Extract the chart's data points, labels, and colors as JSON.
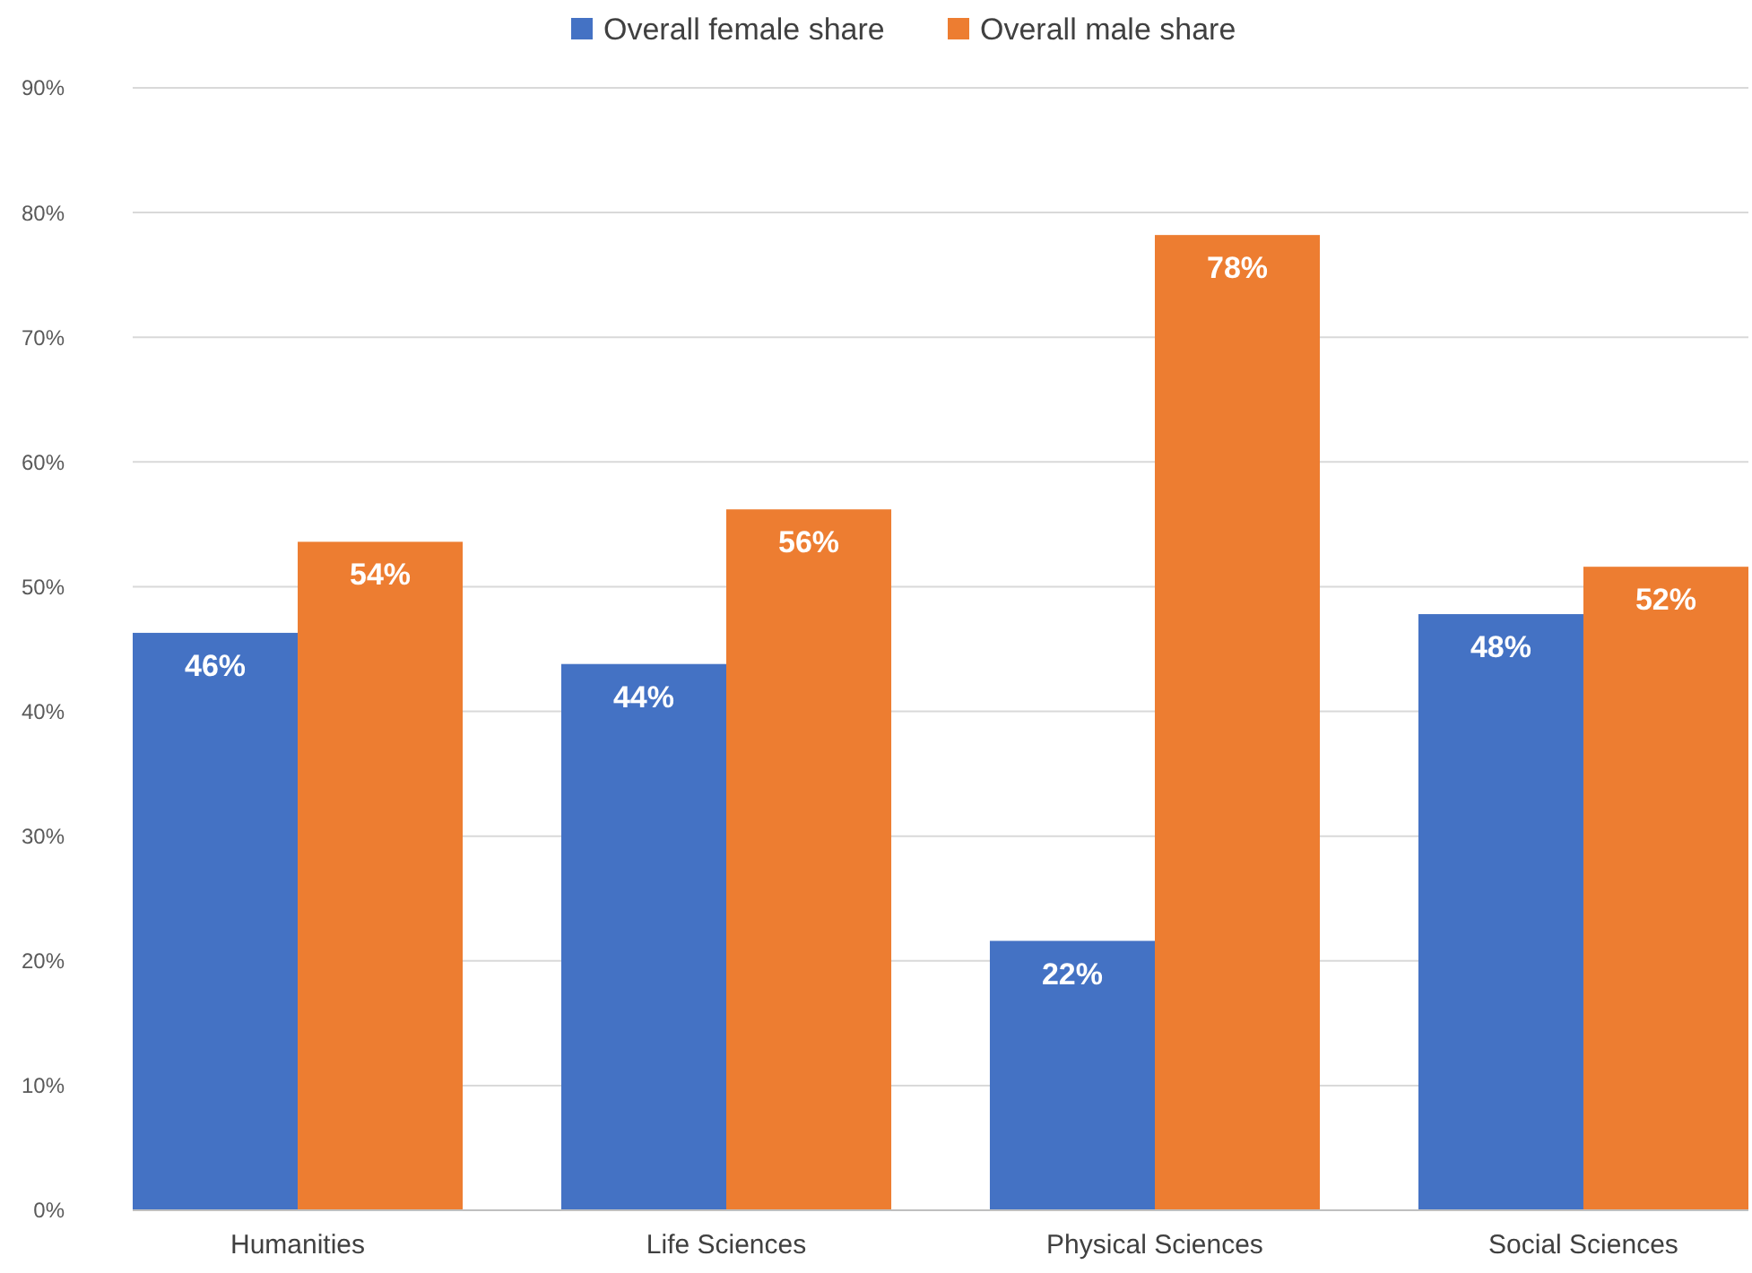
{
  "chart_data": {
    "type": "bar",
    "categories": [
      "Humanities",
      "Life Sciences",
      "Physical Sciences",
      "Social Sciences"
    ],
    "series": [
      {
        "name": "Overall female share",
        "color": "#4472c4",
        "values": [
          46.3,
          43.8,
          21.6,
          47.8
        ],
        "value_labels": [
          "46%",
          "44%",
          "22%",
          "48%"
        ]
      },
      {
        "name": "Overall male share",
        "color": "#ed7d31",
        "values": [
          53.6,
          56.2,
          78.2,
          51.6
        ],
        "value_labels": [
          "54%",
          "56%",
          "78%",
          "52%"
        ]
      }
    ],
    "ylim": [
      0,
      90
    ],
    "yticks": [
      {
        "value": 0,
        "label": "0%"
      },
      {
        "value": 10,
        "label": "10%"
      },
      {
        "value": 20,
        "label": "20%"
      },
      {
        "value": 30,
        "label": "30%"
      },
      {
        "value": 40,
        "label": "40%"
      },
      {
        "value": 50,
        "label": "50%"
      },
      {
        "value": 60,
        "label": "60%"
      },
      {
        "value": 70,
        "label": "70%"
      },
      {
        "value": 80,
        "label": "80%"
      },
      {
        "value": 90,
        "label": "90%"
      }
    ],
    "grid": "y",
    "legend": "top"
  }
}
